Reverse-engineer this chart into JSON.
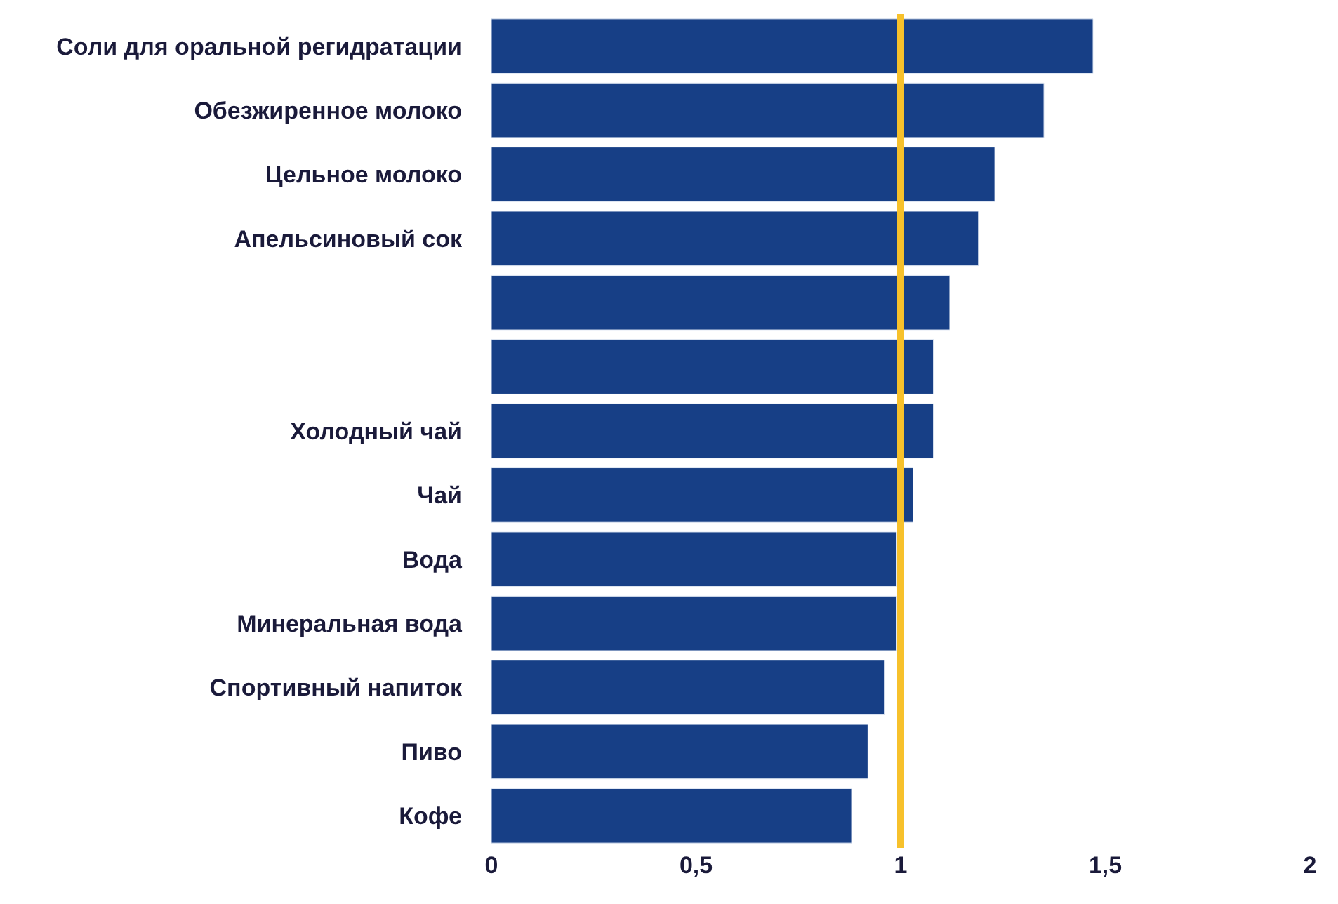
{
  "chart_data": {
    "type": "bar",
    "orientation": "horizontal",
    "categories": [
      "Соли для оральной регидратации",
      "Обезжиренное молоко",
      "Цельное молоко",
      "Апельсиновый сок",
      null,
      null,
      "Холодный чай",
      "Чай",
      "Вода",
      "Минеральная вода",
      "Спортивный напиток",
      "Пиво",
      "Кофе"
    ],
    "values": [
      1.47,
      1.35,
      1.23,
      1.19,
      1.12,
      1.08,
      1.08,
      1.03,
      0.99,
      0.99,
      0.96,
      0.92,
      0.88
    ],
    "color": "#173f86",
    "xlim": [
      0,
      2
    ],
    "xticks": [
      0,
      {
        "value": 0.5,
        "label": "0,5"
      },
      1,
      {
        "value": 1.5,
        "label": "1,5"
      },
      2
    ],
    "ref_lines": [
      {
        "axis": "x",
        "value": 1,
        "color": "#f7c12b"
      }
    ]
  }
}
